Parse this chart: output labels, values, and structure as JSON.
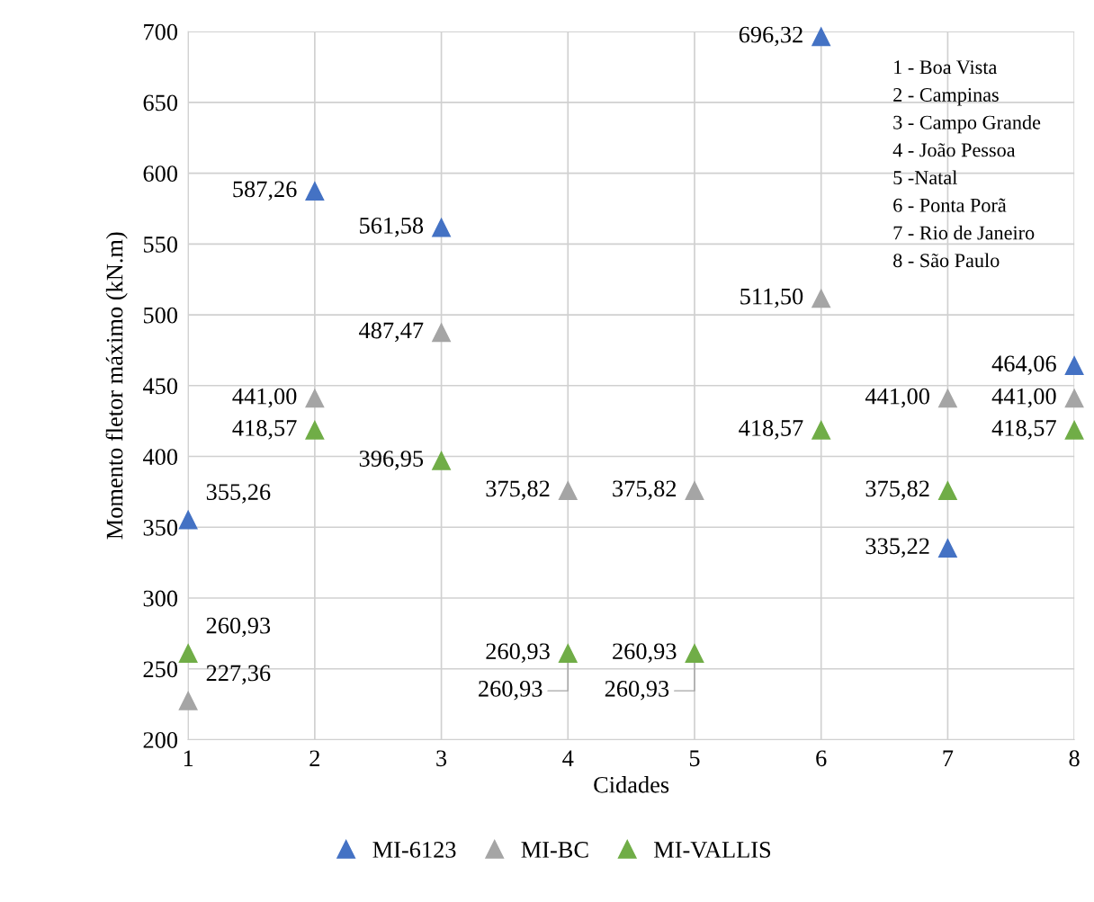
{
  "chart_data": {
    "type": "scatter",
    "xlabel": "Cidades",
    "ylabel": "Momento fletor máximo (kN.m)",
    "x": [
      1,
      2,
      3,
      4,
      5,
      6,
      7,
      8
    ],
    "series": [
      {
        "name": "MI-6123",
        "color": "#4472c4",
        "values": [
          355.26,
          587.26,
          561.58,
          null,
          null,
          696.32,
          335.22,
          464.06
        ],
        "value_labels": [
          "355,26",
          "587,26",
          "561,58",
          null,
          null,
          "696,32",
          "335,22",
          "464,06"
        ]
      },
      {
        "name": "MI-BC",
        "color": "#a5a5a5",
        "values": [
          227.36,
          441.0,
          487.47,
          375.82,
          375.82,
          511.5,
          441.0,
          441.0
        ],
        "value_labels": [
          "227,36",
          "441,00",
          "487,47",
          "375,82",
          "375,82",
          "511,50",
          "441,00",
          "441,00"
        ]
      },
      {
        "name": "MI-VALLIS",
        "color": "#70ad47",
        "values": [
          260.93,
          418.57,
          396.95,
          260.93,
          260.93,
          418.57,
          375.82,
          418.57
        ],
        "value_labels": [
          "260,93",
          "418,57",
          "396,95",
          "260,93",
          "260,93",
          "418,57",
          "375,82",
          "418,57"
        ]
      }
    ],
    "annotations": [
      "1 - Boa Vista",
      "2 - Campinas",
      "3 - Campo Grande",
      "4 - João Pessoa",
      "5 -Natal",
      "6 - Ponta Porã",
      "7 - Rio de Janeiro",
      "8 - São Paulo",
      {
        "text": "260,93",
        "x": 4,
        "y": 260.93
      },
      {
        "text": "260,93",
        "x": 5,
        "y": 260.93
      }
    ],
    "xlim": [
      1,
      8
    ],
    "xticks": [
      1,
      2,
      3,
      4,
      5,
      6,
      7,
      8
    ],
    "ylim": [
      200,
      700
    ],
    "yticks": [
      200,
      250,
      300,
      350,
      400,
      450,
      500,
      550,
      600,
      650,
      700
    ],
    "grid": true,
    "legend": "bottom",
    "marker": "triangle"
  }
}
